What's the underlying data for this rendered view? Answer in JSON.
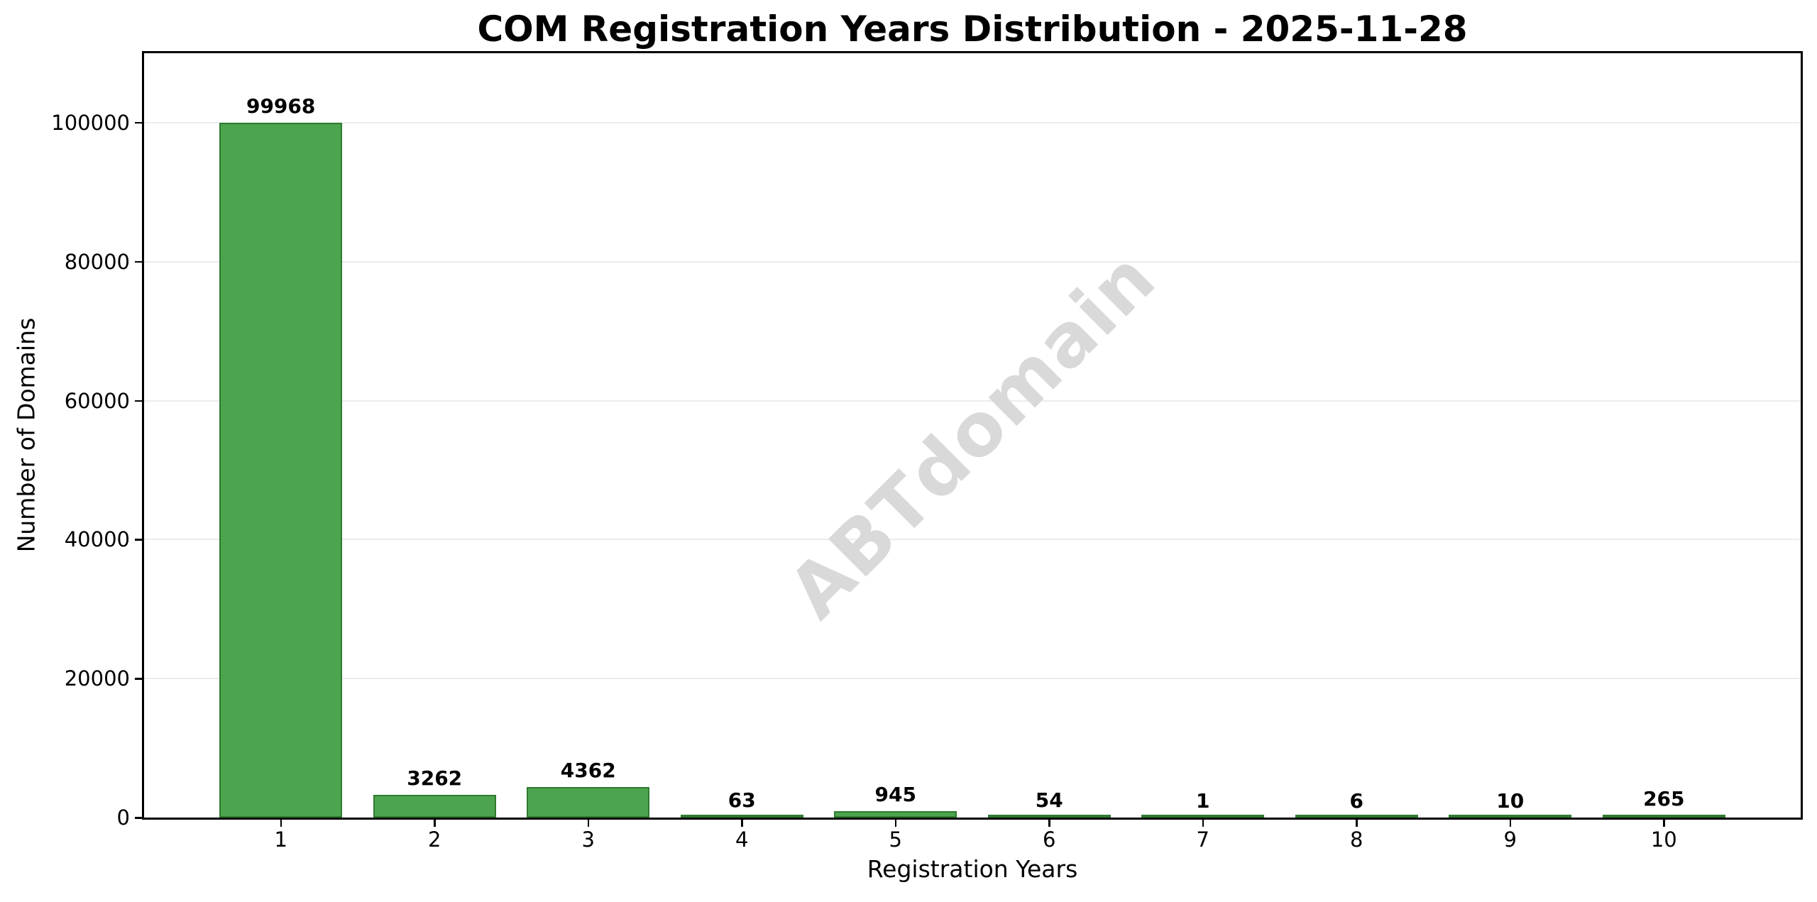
{
  "chart_data": {
    "type": "bar",
    "title": "COM Registration Years Distribution - 2025-11-28",
    "xlabel": "Registration Years",
    "ylabel": "Number of Domains",
    "categories": [
      "1",
      "2",
      "3",
      "4",
      "5",
      "6",
      "7",
      "8",
      "9",
      "10"
    ],
    "values": [
      99968,
      3262,
      4362,
      63,
      945,
      54,
      1,
      6,
      10,
      265
    ],
    "value_labels": [
      "99968",
      "3262",
      "4362",
      "63",
      "945",
      "54",
      "1",
      "6",
      "10",
      "265"
    ],
    "ylim": [
      0,
      110000
    ],
    "yticks": [
      0,
      20000,
      40000,
      60000,
      80000,
      100000
    ],
    "ytick_labels": [
      "0",
      "20000",
      "40000",
      "60000",
      "80000",
      "100000"
    ],
    "grid": "horizontal-only",
    "legend": "none",
    "watermark": "ABTdomain",
    "colors": {
      "bar_fill": "#4DA44F",
      "bar_edge": "#2F7B31",
      "grid_line": "#ececec",
      "axis_and_text": "#000000",
      "watermark": "#d9d9d9",
      "background": "#ffffff"
    }
  }
}
